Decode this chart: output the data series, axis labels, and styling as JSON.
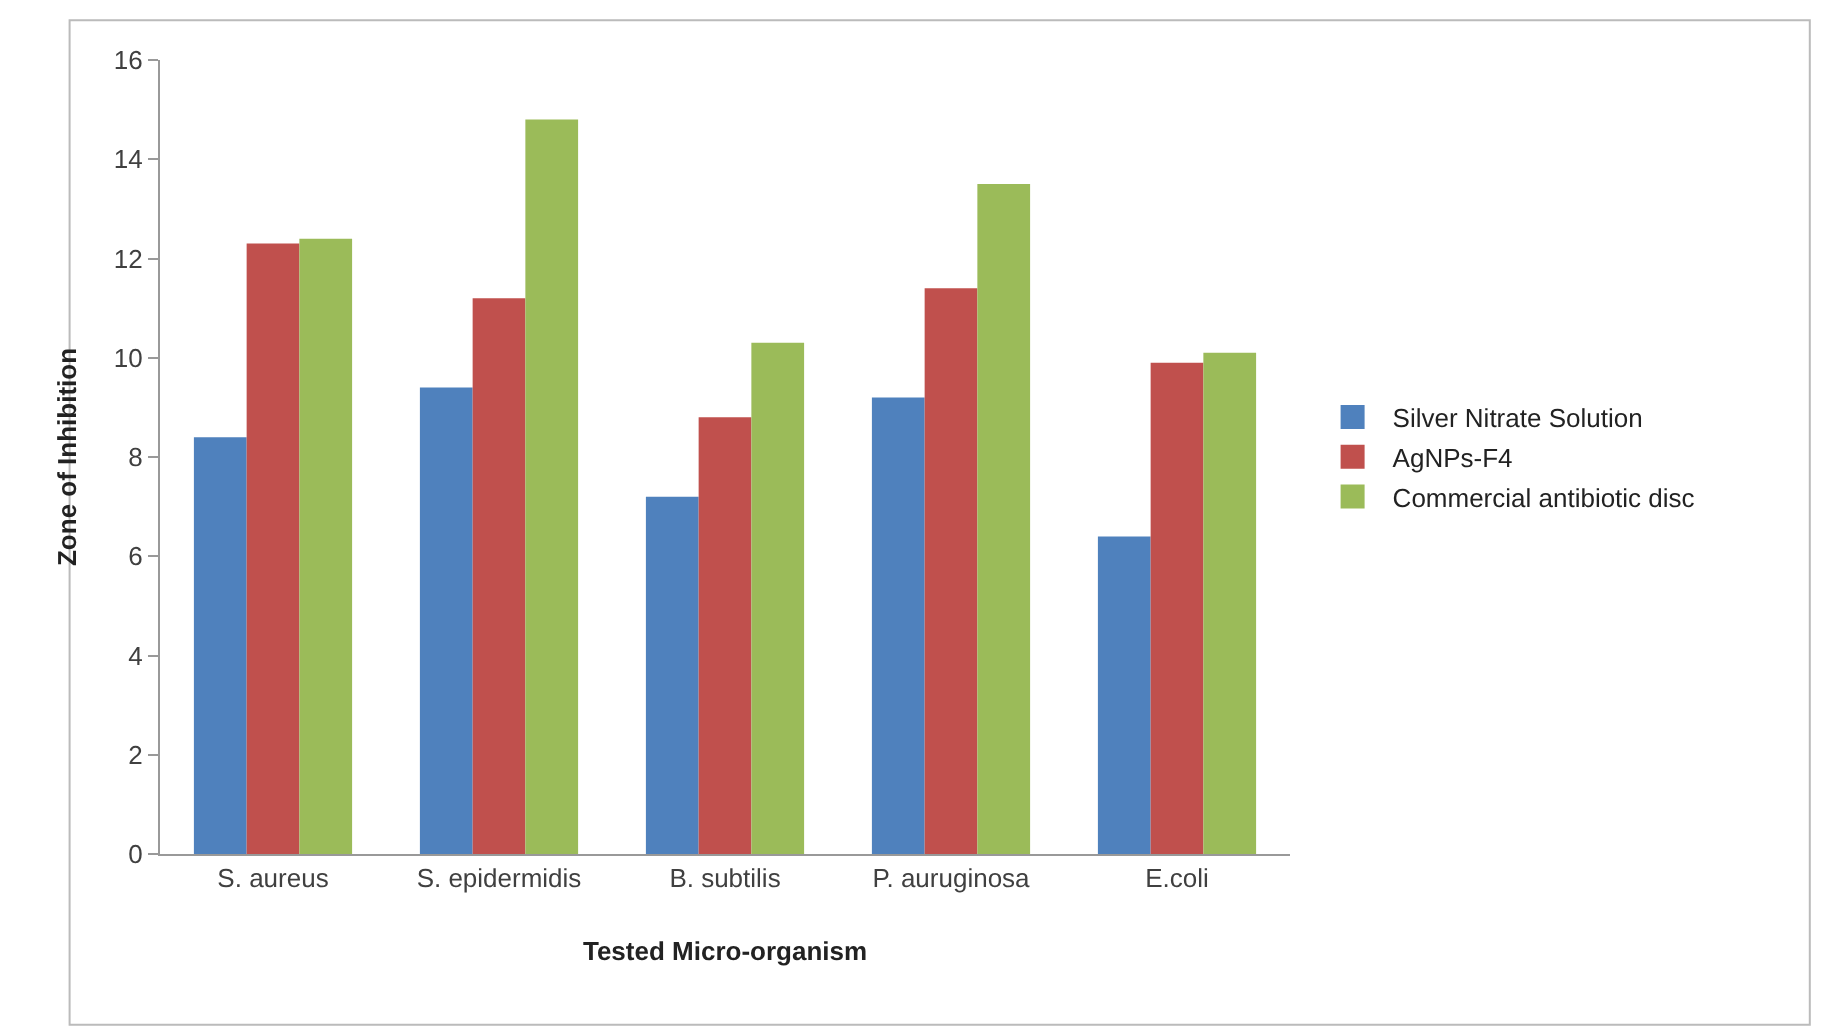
{
  "chart_data": {
    "type": "bar",
    "xlabel": "Tested Micro-organism",
    "ylabel": "Zone of Inhibition",
    "categories": [
      "S. aureus",
      "S. epidermidis",
      "B. subtilis",
      "P. auruginosa",
      "E.coli"
    ],
    "series": [
      {
        "name": "Silver Nitrate Solution",
        "color": "#4f81bd",
        "values": [
          8.4,
          9.4,
          7.2,
          9.2,
          6.4
        ]
      },
      {
        "name": "AgNPs-F4",
        "color": "#c0504d",
        "values": [
          12.3,
          11.2,
          8.8,
          11.4,
          9.9
        ]
      },
      {
        "name": "Commercial antibiotic disc",
        "color": "#9bbb59",
        "values": [
          12.4,
          14.8,
          10.3,
          13.5,
          10.1
        ]
      }
    ],
    "ylim": [
      0,
      16
    ],
    "yticks": [
      0,
      2,
      4,
      6,
      8,
      10,
      12,
      14,
      16
    ],
    "legend": "right"
  }
}
